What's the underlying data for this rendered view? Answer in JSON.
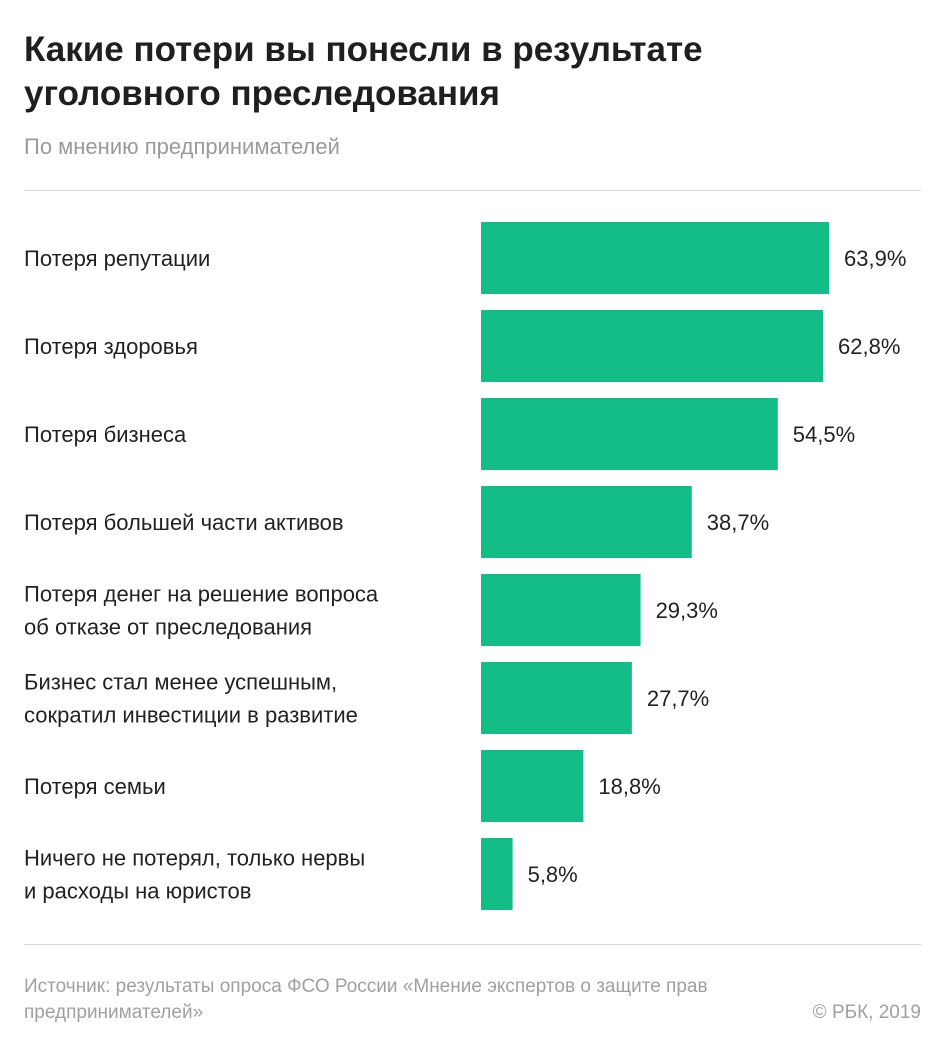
{
  "header": {
    "title": "Какие потери вы понесли в результате уголовного преследования",
    "subtitle": "По мнению предпринимателей"
  },
  "footer": {
    "source": "Источник: результаты опроса ФСО России «Мнение экспертов о защите прав предпринимателей»",
    "copyright": "© РБК, 2019"
  },
  "chart_data": {
    "type": "bar",
    "orientation": "horizontal",
    "title": "Какие потери вы понесли в результате уголовного преследования",
    "subtitle": "По мнению предпринимателей",
    "categories": [
      [
        "Потеря репутации"
      ],
      [
        "Потеря здоровья"
      ],
      [
        "Потеря бизнеса"
      ],
      [
        "Потеря большей части активов"
      ],
      [
        "Потеря денег на решение вопроса",
        "об отказе от преследования"
      ],
      [
        "Бизнес стал менее успешным,",
        "сократил инвестиции в развитие"
      ],
      [
        "Потеря семьи"
      ],
      [
        "Ничего не потерял, только нервы",
        "и расходы на юристов"
      ]
    ],
    "values": [
      63.9,
      62.8,
      54.5,
      38.7,
      29.3,
      27.7,
      18.8,
      5.8
    ],
    "value_labels": [
      "63,9%",
      "62,8%",
      "54,5%",
      "38,7%",
      "29,3%",
      "27,7%",
      "18,8%",
      "5,8%"
    ],
    "unit": "%",
    "xlim": [
      0,
      63.9
    ],
    "bar_color": "#14bd87",
    "grid": false,
    "legend": "none"
  }
}
